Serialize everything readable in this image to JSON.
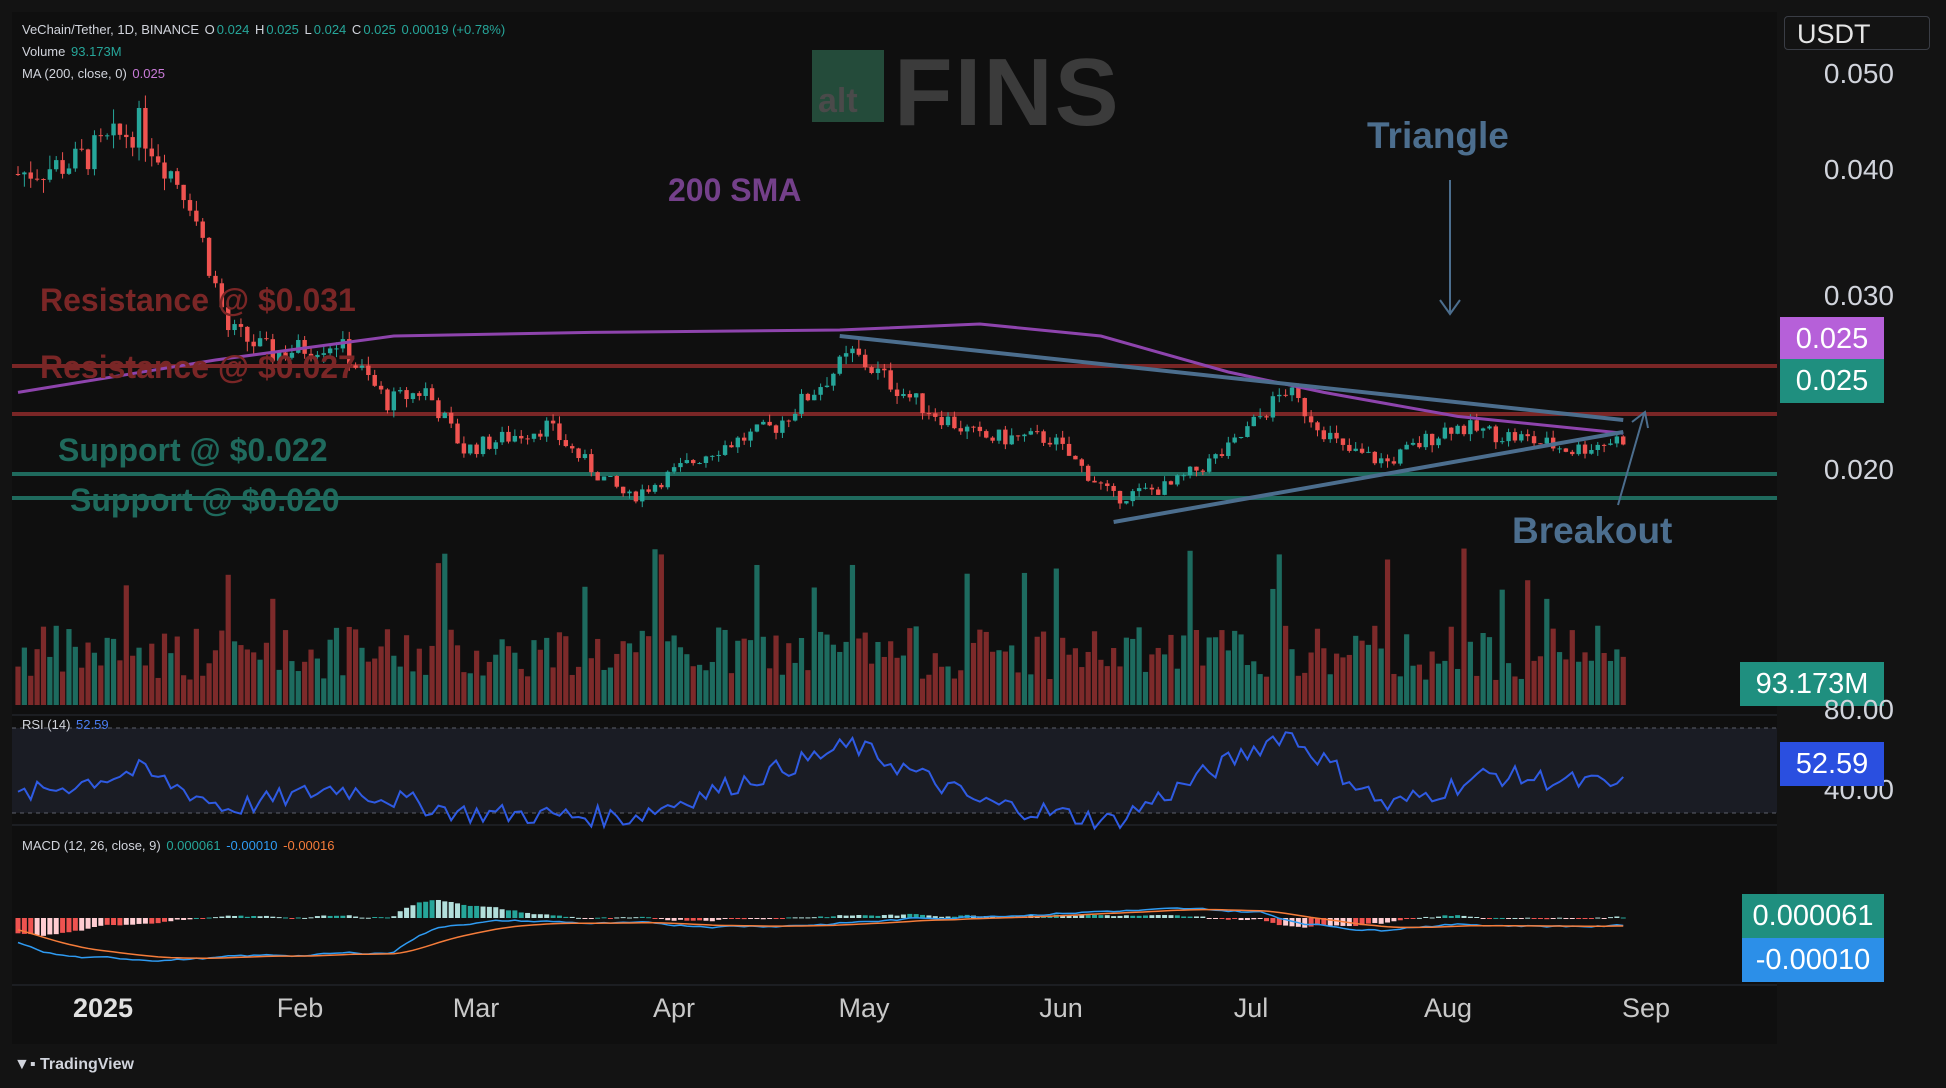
{
  "legend": {
    "symbol": "VeChain/Tether, 1D, BINANCE",
    "o_label": "O",
    "o": "0.024",
    "h_label": "H",
    "h": "0.025",
    "l_label": "L",
    "l": "0.024",
    "c_label": "C",
    "c": "0.025",
    "change": "0.00019 (+0.78%)",
    "volume_label": "Volume",
    "volume": "93.173M",
    "ma_label": "MA (200, close, 0)",
    "ma": "0.025",
    "rsi_label": "RSI (14)",
    "rsi": "52.59",
    "macd_label": "MACD (12, 26, close, 9)",
    "macd1": "0.000061",
    "macd2": "-0.00010",
    "macd3": "-0.00016"
  },
  "currency": "USDT",
  "price_axis": [
    "0.050",
    "0.040",
    "0.030",
    "0.020"
  ],
  "tags": {
    "ma": "0.025",
    "price": "0.025",
    "volume": "93.173M",
    "rsi": "52.59",
    "macd": "0.000061",
    "signal": "-0.00010"
  },
  "rsi_axis": [
    "80.00",
    "40.00"
  ],
  "months": [
    "2025",
    "Feb",
    "Mar",
    "Apr",
    "May",
    "Jun",
    "Jul",
    "Aug",
    "Sep"
  ],
  "annotations": {
    "res1": "Resistance @ $0.031",
    "res2": "Resistance @ $0.027",
    "sup1": "Support @ $0.022",
    "sup2": "Support @ $0.020",
    "sma": "200 SMA",
    "triangle": "Triangle",
    "breakout": "Breakout"
  },
  "logo": {
    "alt": "alt",
    "fins": "FINS"
  },
  "footer": "TradingView",
  "colors": {
    "up": "#26a69a",
    "down": "#ef5350",
    "ma": "#8e44ad",
    "resistance": "#7a2626",
    "support": "#1f6a5d",
    "trendline": "#4c6e8e",
    "rsi": "#2f5be3",
    "macd": "#2f9bf2",
    "signal": "#f57c3a"
  },
  "chart_data": {
    "type": "candlestick",
    "symbol": "VeChain/Tether",
    "interval": "1D",
    "exchange": "BINANCE",
    "ylim": [
      0.013,
      0.057
    ],
    "price_ticks": [
      0.02,
      0.03,
      0.04,
      0.05
    ],
    "resistance_levels": [
      0.031,
      0.027
    ],
    "support_levels": [
      0.022,
      0.02
    ],
    "close_path": [
      {
        "date": "2025-01-01",
        "close": 0.047
      },
      {
        "date": "2025-01-10",
        "close": 0.048
      },
      {
        "date": "2025-01-20",
        "close": 0.051
      },
      {
        "date": "2025-01-28",
        "close": 0.045
      },
      {
        "date": "2025-02-03",
        "close": 0.034
      },
      {
        "date": "2025-02-10",
        "close": 0.032
      },
      {
        "date": "2025-02-20",
        "close": 0.033
      },
      {
        "date": "2025-02-28",
        "close": 0.028
      },
      {
        "date": "2025-03-06",
        "close": 0.029
      },
      {
        "date": "2025-03-12",
        "close": 0.024
      },
      {
        "date": "2025-03-25",
        "close": 0.026
      },
      {
        "date": "2025-04-02",
        "close": 0.022
      },
      {
        "date": "2025-04-07",
        "close": 0.02
      },
      {
        "date": "2025-04-20",
        "close": 0.024
      },
      {
        "date": "2025-04-30",
        "close": 0.026
      },
      {
        "date": "2025-05-08",
        "close": 0.03
      },
      {
        "date": "2025-05-12",
        "close": 0.032
      },
      {
        "date": "2025-05-22",
        "close": 0.028
      },
      {
        "date": "2025-06-01",
        "close": 0.025
      },
      {
        "date": "2025-06-12",
        "close": 0.025
      },
      {
        "date": "2025-06-22",
        "close": 0.02
      },
      {
        "date": "2025-07-01",
        "close": 0.021
      },
      {
        "date": "2025-07-10",
        "close": 0.024
      },
      {
        "date": "2025-07-19",
        "close": 0.029
      },
      {
        "date": "2025-07-28",
        "close": 0.024
      },
      {
        "date": "2025-08-04",
        "close": 0.023
      },
      {
        "date": "2025-08-14",
        "close": 0.026
      },
      {
        "date": "2025-08-25",
        "close": 0.025
      },
      {
        "date": "2025-09-02",
        "close": 0.024
      },
      {
        "date": "2025-09-10",
        "close": 0.025
      }
    ],
    "ma200": [
      {
        "date": "2025-01-01",
        "value": 0.0288
      },
      {
        "date": "2025-02-01",
        "value": 0.0315
      },
      {
        "date": "2025-03-01",
        "value": 0.0335
      },
      {
        "date": "2025-04-01",
        "value": 0.0338
      },
      {
        "date": "2025-05-10",
        "value": 0.034
      },
      {
        "date": "2025-06-01",
        "value": 0.0345
      },
      {
        "date": "2025-06-20",
        "value": 0.0335
      },
      {
        "date": "2025-07-10",
        "value": 0.0305
      },
      {
        "date": "2025-07-25",
        "value": 0.0288
      },
      {
        "date": "2025-08-15",
        "value": 0.0268
      },
      {
        "date": "2025-09-10",
        "value": 0.0254
      }
    ],
    "triangle_upper": [
      {
        "date": "2025-05-10",
        "value": 0.0335
      },
      {
        "date": "2025-09-10",
        "value": 0.0265
      }
    ],
    "triangle_lower": [
      {
        "date": "2025-06-22",
        "value": 0.018
      },
      {
        "date": "2025-09-10",
        "value": 0.0255
      }
    ],
    "volume_last": "93.173M",
    "rsi": {
      "period": 14,
      "last": 52.59,
      "levels": [
        80,
        40
      ],
      "points": [
        {
          "date": "2025-01-01",
          "value": 48
        },
        {
          "date": "2025-01-20",
          "value": 60
        },
        {
          "date": "2025-02-03",
          "value": 42
        },
        {
          "date": "2025-02-20",
          "value": 52
        },
        {
          "date": "2025-03-12",
          "value": 40
        },
        {
          "date": "2025-04-07",
          "value": 38
        },
        {
          "date": "2025-04-25",
          "value": 55
        },
        {
          "date": "2025-05-12",
          "value": 72
        },
        {
          "date": "2025-06-01",
          "value": 45
        },
        {
          "date": "2025-06-22",
          "value": 36
        },
        {
          "date": "2025-07-19",
          "value": 78
        },
        {
          "date": "2025-08-04",
          "value": 43
        },
        {
          "date": "2025-08-20",
          "value": 58
        },
        {
          "date": "2025-09-10",
          "value": 52.59
        }
      ]
    },
    "macd": {
      "fast": 12,
      "slow": 26,
      "signal": 9,
      "macd": 6.1e-05,
      "signal_value": -0.0001,
      "histogram": -0.00016
    }
  }
}
